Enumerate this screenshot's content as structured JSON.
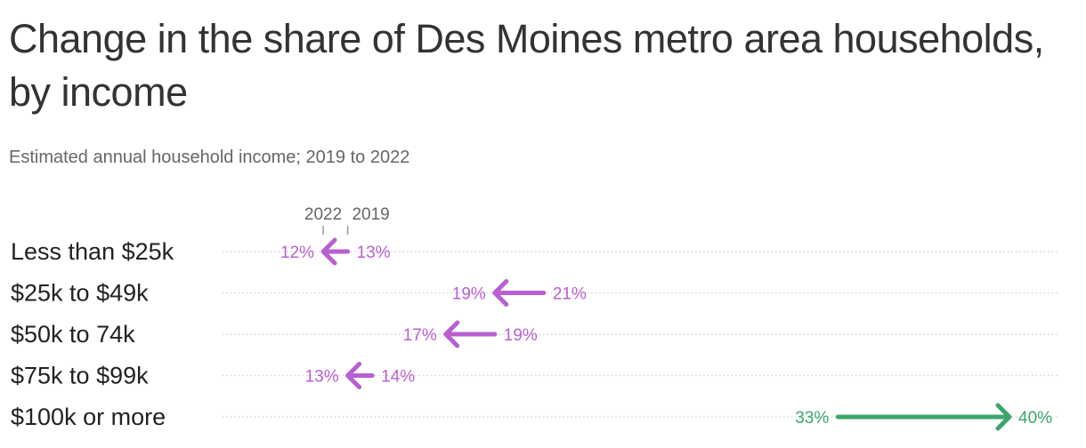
{
  "chart_data": {
    "type": "arrow",
    "title": "Change in the share of Des Moines metro area households, by income",
    "subtitle": "Estimated annual household income; 2019 to 2022",
    "start_label": "2019",
    "end_label": "2022",
    "categories": [
      "Less than $25k",
      "$25k to $49k",
      "$50k to 74k",
      "$75k to $99k",
      "$100k or more"
    ],
    "series": [
      {
        "name": "2019",
        "values": [
          13,
          21,
          19,
          14,
          33
        ]
      },
      {
        "name": "2022",
        "values": [
          12,
          19,
          17,
          13,
          40
        ]
      }
    ],
    "value_format": "{v}%",
    "xlim": [
      10,
      40
    ],
    "colors": {
      "decrease": "#b85fd1",
      "increase": "#3da56b",
      "grid": "#cfcfcf"
    }
  }
}
